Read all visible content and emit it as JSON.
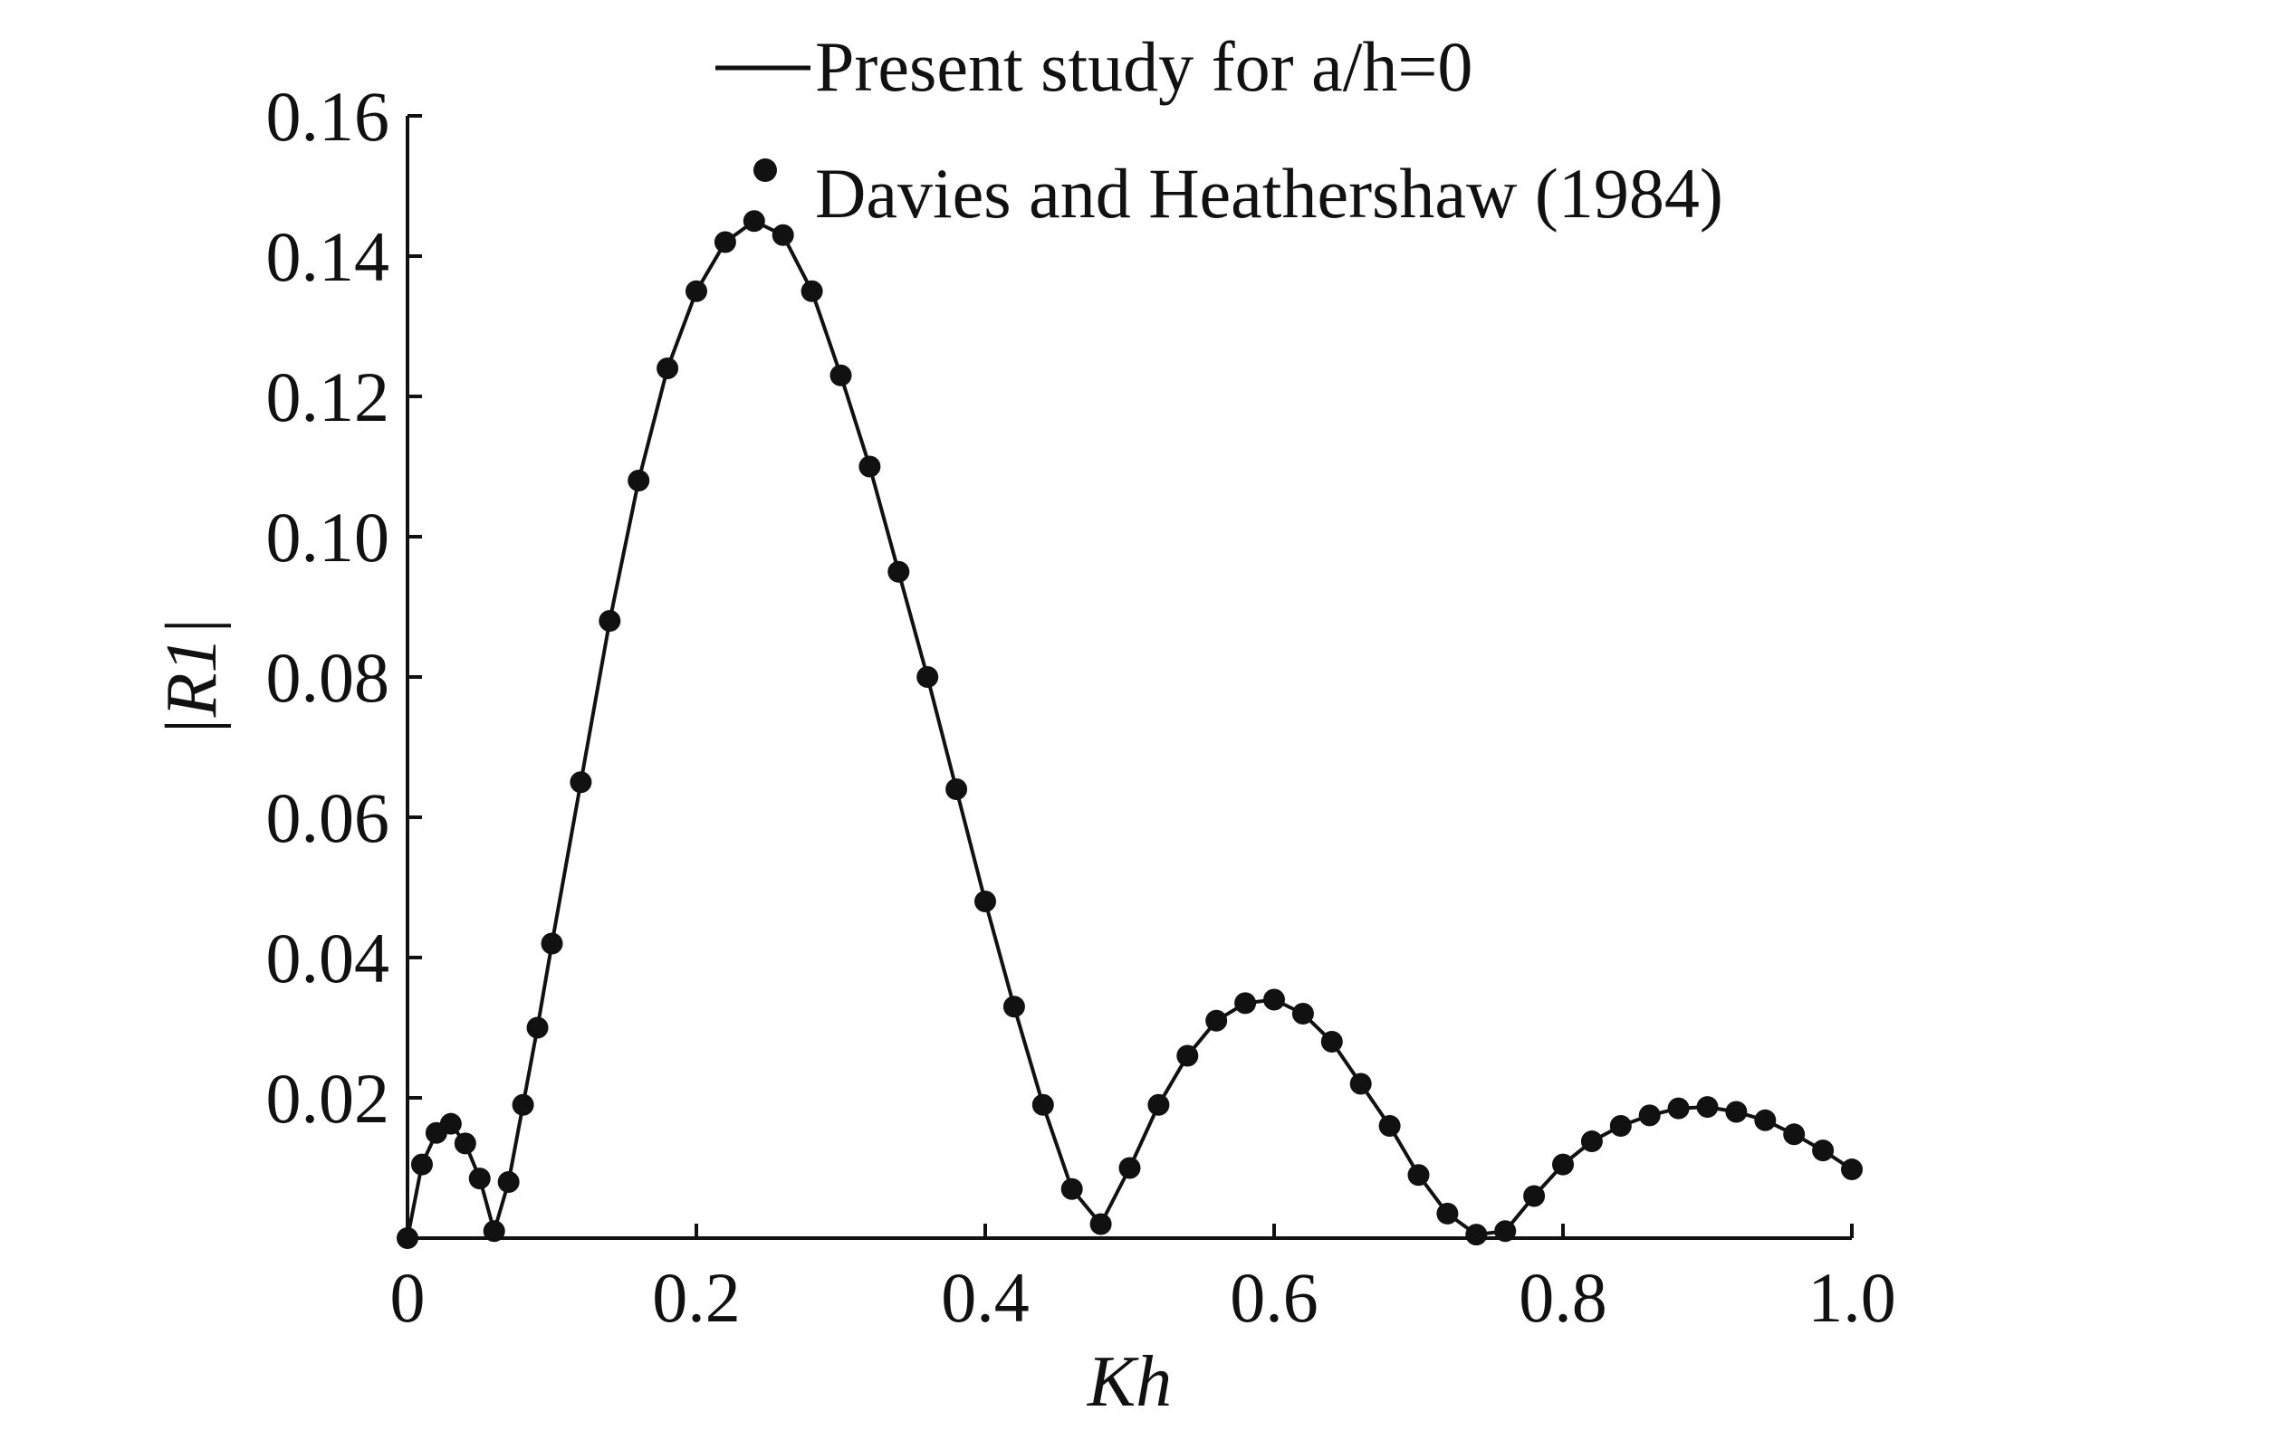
{
  "chart_data": {
    "type": "scatter",
    "title": "",
    "xlabel": "Kh",
    "ylabel": "|R1|",
    "xlim": [
      0,
      1.0
    ],
    "ylim": [
      0,
      0.16
    ],
    "x_ticks": [
      {
        "value": 0,
        "label": "0"
      },
      {
        "value": 0.2,
        "label": "0.2"
      },
      {
        "value": 0.4,
        "label": "0.4"
      },
      {
        "value": 0.6,
        "label": "0.6"
      },
      {
        "value": 0.8,
        "label": "0.8"
      },
      {
        "value": 1.0,
        "label": "1.0"
      }
    ],
    "y_ticks": [
      {
        "value": 0.02,
        "label": "0.02"
      },
      {
        "value": 0.04,
        "label": "0.04"
      },
      {
        "value": 0.06,
        "label": "0.06"
      },
      {
        "value": 0.08,
        "label": "0.08"
      },
      {
        "value": 0.1,
        "label": "0.10"
      },
      {
        "value": 0.12,
        "label": "0.12"
      },
      {
        "value": 0.14,
        "label": "0.14"
      },
      {
        "value": 0.16,
        "label": "0.16"
      }
    ],
    "grid": false,
    "legend_position": "top",
    "series": [
      {
        "name": "Present study for a/h=0",
        "kind": "line",
        "color": "#111111",
        "x": [
          0,
          0.01,
          0.02,
          0.03,
          0.04,
          0.05,
          0.06,
          0.07,
          0.08,
          0.09,
          0.1,
          0.12,
          0.14,
          0.16,
          0.18,
          0.2,
          0.22,
          0.24,
          0.26,
          0.28,
          0.3,
          0.32,
          0.34,
          0.36,
          0.38,
          0.4,
          0.42,
          0.44,
          0.46,
          0.48,
          0.5,
          0.52,
          0.54,
          0.56,
          0.58,
          0.6,
          0.62,
          0.64,
          0.66,
          0.68,
          0.7,
          0.72,
          0.74,
          0.76,
          0.78,
          0.8,
          0.82,
          0.84,
          0.86,
          0.88,
          0.9,
          0.92,
          0.94,
          0.96,
          0.98,
          1.0
        ],
        "y": [
          0,
          0.0105,
          0.015,
          0.0163,
          0.0135,
          0.0085,
          0.001,
          0.008,
          0.019,
          0.03,
          0.042,
          0.065,
          0.088,
          0.108,
          0.124,
          0.135,
          0.142,
          0.145,
          0.143,
          0.135,
          0.123,
          0.11,
          0.095,
          0.08,
          0.064,
          0.048,
          0.033,
          0.019,
          0.007,
          0.002,
          0.01,
          0.019,
          0.026,
          0.031,
          0.0335,
          0.034,
          0.032,
          0.028,
          0.022,
          0.016,
          0.009,
          0.0035,
          0.0005,
          0.001,
          0.006,
          0.0105,
          0.0138,
          0.016,
          0.0175,
          0.0185,
          0.0187,
          0.018,
          0.0168,
          0.0148,
          0.0125,
          0.0098
        ]
      },
      {
        "name": "Davies and Heathershaw (1984)",
        "kind": "marker",
        "color": "#111111",
        "x": [
          0,
          0.01,
          0.02,
          0.03,
          0.04,
          0.05,
          0.06,
          0.07,
          0.08,
          0.09,
          0.1,
          0.12,
          0.14,
          0.16,
          0.18,
          0.2,
          0.22,
          0.24,
          0.26,
          0.28,
          0.3,
          0.32,
          0.34,
          0.36,
          0.38,
          0.4,
          0.42,
          0.44,
          0.46,
          0.48,
          0.5,
          0.52,
          0.54,
          0.56,
          0.58,
          0.6,
          0.62,
          0.64,
          0.66,
          0.68,
          0.7,
          0.72,
          0.74,
          0.76,
          0.78,
          0.8,
          0.82,
          0.84,
          0.86,
          0.88,
          0.9,
          0.92,
          0.94,
          0.96,
          0.98,
          1.0
        ],
        "y": [
          0,
          0.0105,
          0.015,
          0.0163,
          0.0135,
          0.0085,
          0.001,
          0.008,
          0.019,
          0.03,
          0.042,
          0.065,
          0.088,
          0.108,
          0.124,
          0.135,
          0.142,
          0.145,
          0.143,
          0.135,
          0.123,
          0.11,
          0.095,
          0.08,
          0.064,
          0.048,
          0.033,
          0.019,
          0.007,
          0.002,
          0.01,
          0.019,
          0.026,
          0.031,
          0.0335,
          0.034,
          0.032,
          0.028,
          0.022,
          0.016,
          0.009,
          0.0035,
          0.0005,
          0.001,
          0.006,
          0.0105,
          0.0138,
          0.016,
          0.0175,
          0.0185,
          0.0187,
          0.018,
          0.0168,
          0.0148,
          0.0125,
          0.0098
        ]
      }
    ]
  },
  "legend": {
    "line_label": "Present study for a/h=0",
    "marker_label": "Davies and Heathershaw (1984)"
  }
}
